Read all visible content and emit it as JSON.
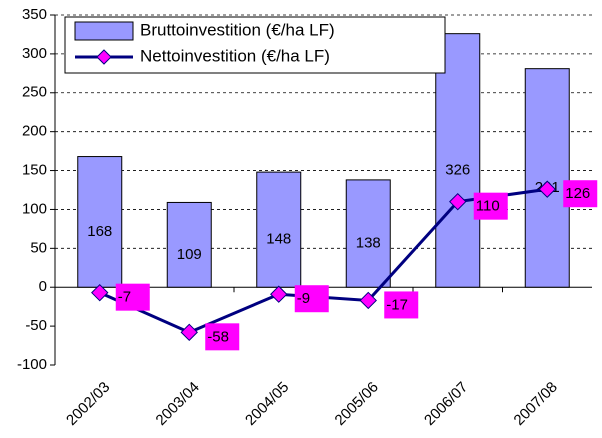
{
  "chart_data": {
    "type": "bar",
    "categories": [
      "2002/03",
      "2003/04",
      "2004/05",
      "2005/06",
      "2006/07",
      "2007/08"
    ],
    "series": [
      {
        "name": "Bruttoinvestition (€/ha LF)",
        "type": "bar",
        "color": "#9999ff",
        "values": [
          168,
          109,
          148,
          138,
          326,
          281
        ]
      },
      {
        "name": "Nettoinvestition (€/ha LF)",
        "type": "line",
        "color": "#000080",
        "marker_color": "#ff00ff",
        "values": [
          -7,
          -58,
          -9,
          -17,
          110,
          126
        ]
      }
    ],
    "ylim": [
      -100,
      350
    ],
    "yticks": [
      -100,
      -50,
      0,
      50,
      100,
      150,
      200,
      250,
      300,
      350
    ],
    "grid": true,
    "legend": "top-left"
  }
}
